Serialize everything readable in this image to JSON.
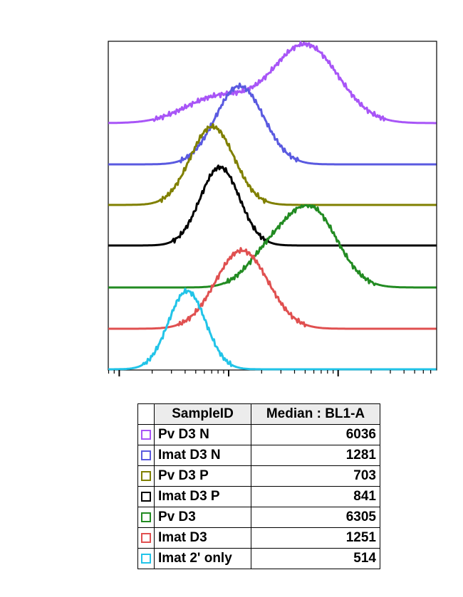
{
  "chart_data": {
    "type": "area",
    "title": "",
    "xlabel": "",
    "ylabel": "",
    "x_scale": "log",
    "grid": false,
    "legend": {
      "placement": "below",
      "headers": [
        "SampleID",
        "Median : BL1-A"
      ]
    },
    "series": [
      {
        "name": "Pv D3 N",
        "median": "6036",
        "color": "#a855f7",
        "peaks": [
          {
            "center": 3.7,
            "width": 0.3,
            "height": 1.0
          },
          {
            "center": 2.9,
            "width": 0.3,
            "height": 0.33
          }
        ]
      },
      {
        "name": "Imat D3 N",
        "median": "1281",
        "color": "#5a5ae0",
        "peaks": [
          {
            "center": 3.1,
            "width": 0.22,
            "height": 1.0
          }
        ]
      },
      {
        "name": "Pv D3 P",
        "median": "703",
        "color": "#808000",
        "peaks": [
          {
            "center": 2.85,
            "width": 0.2,
            "height": 1.0
          }
        ]
      },
      {
        "name": "Imat D3 P",
        "median": "841",
        "color": "#000000",
        "peaks": [
          {
            "center": 2.92,
            "width": 0.18,
            "height": 1.0
          }
        ]
      },
      {
        "name": "Pv D3",
        "median": "6305",
        "color": "#228b22",
        "peaks": [
          {
            "center": 3.75,
            "width": 0.24,
            "height": 1.0
          },
          {
            "center": 3.35,
            "width": 0.2,
            "height": 0.35
          }
        ]
      },
      {
        "name": "Imat D3",
        "median": "1251",
        "color": "#e05050",
        "peaks": [
          {
            "center": 3.12,
            "width": 0.24,
            "height": 1.0
          }
        ]
      },
      {
        "name": "Imat 2' only",
        "median": "514",
        "color": "#22c4e8",
        "peaks": [
          {
            "center": 2.62,
            "width": 0.17,
            "height": 1.0
          }
        ]
      }
    ]
  }
}
